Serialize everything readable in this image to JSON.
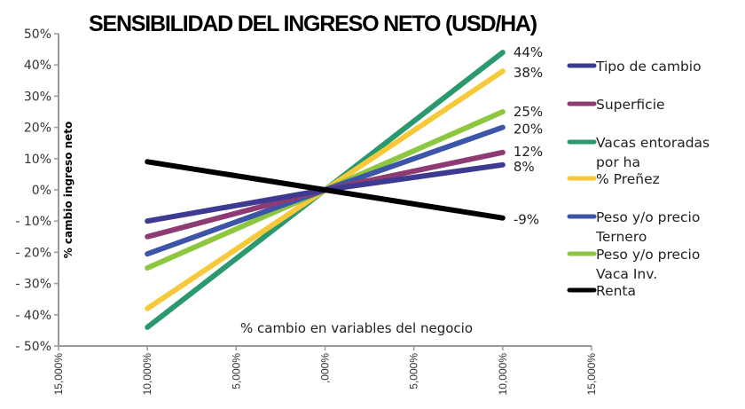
{
  "chart_data": {
    "type": "line",
    "title": "SENSIBILIDAD DEL INGRESO NETO (USD/HA)",
    "xlabel": "% cambio en variables del negocio",
    "ylabel": "% cambio ingreso neto",
    "x": [
      -10,
      0,
      10
    ],
    "xlim": [
      -15,
      15
    ],
    "ylim": [
      -50,
      50
    ],
    "xticks": [
      -15,
      -10,
      -5,
      0,
      5,
      10,
      15
    ],
    "xtick_labels": [
      "15,000%",
      "10,000%",
      "5,000%",
      ",000%",
      "5,000%",
      "10,000%",
      "15,000%"
    ],
    "yticks": [
      50,
      40,
      30,
      20,
      10,
      0,
      -10,
      -20,
      -30,
      -40,
      -50
    ],
    "ytick_labels": [
      "50%",
      "40%",
      "30%",
      "20%",
      "10%",
      "0%",
      "- 10%",
      "- 20%",
      "- 30%",
      "- 40%",
      "- 50%"
    ],
    "grid": false,
    "legend_position": "right",
    "series": [
      {
        "name": "Tipo de cambio",
        "values": [
          -10,
          0,
          8
        ],
        "end_label": "8%",
        "color": "#3d3a92"
      },
      {
        "name": "Superficie",
        "values": [
          -15,
          0,
          12
        ],
        "end_label": "12%",
        "color": "#8e3a73"
      },
      {
        "name": "Vacas entoradas por ha",
        "legend_lines": [
          "Vacas entoradas",
          "por ha"
        ],
        "values": [
          -44,
          0,
          44
        ],
        "end_label": "44%",
        "color": "#2a9a6e"
      },
      {
        "name": "% Preñez",
        "values": [
          -38,
          0,
          38
        ],
        "end_label": "38%",
        "color": "#f7c93a"
      },
      {
        "name": "Peso y/o precio Ternero",
        "legend_lines": [
          "Peso y/o precio",
          "Ternero"
        ],
        "values": [
          -20.5,
          0,
          20
        ],
        "end_label": "20%",
        "color": "#3d55a8"
      },
      {
        "name": "Peso y/o precio Vaca Inv.",
        "legend_lines": [
          "Peso y/o precio",
          "Vaca Inv."
        ],
        "values": [
          -25,
          0,
          25
        ],
        "end_label": "25%",
        "color": "#8dc63f"
      },
      {
        "name": "Renta",
        "values": [
          9,
          0,
          -9
        ],
        "end_label": "-9%",
        "color": "#000000"
      }
    ]
  }
}
